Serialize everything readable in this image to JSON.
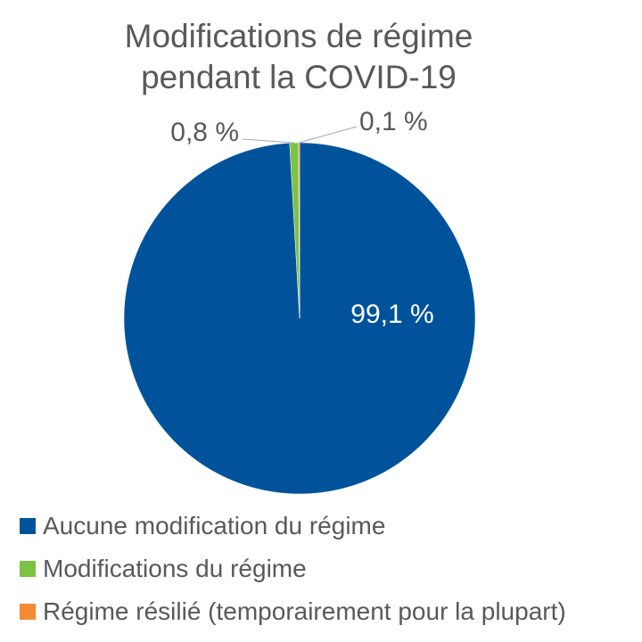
{
  "chart_data": {
    "type": "pie",
    "title_lines": [
      "Modifications de régime",
      "pendant la COVID-19"
    ],
    "slices": [
      {
        "label": "Aucune modification du régime",
        "value": 99.1,
        "display": "99,1 %",
        "color": "#00539B"
      },
      {
        "label": "Modifications du régime",
        "value": 0.8,
        "display": "0,8 %",
        "color": "#7DC242"
      },
      {
        "label": "Régime résilié (temporairement pour la plupart)",
        "value": 0.1,
        "display": "0,1 %",
        "color": "#F58A34"
      }
    ],
    "legend_position": "bottom"
  }
}
